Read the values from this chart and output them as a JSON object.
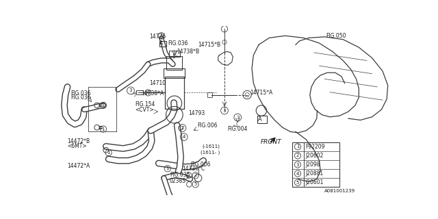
{
  "background_color": "#ffffff",
  "line_color": "#3a3a3a",
  "text_color": "#1a1a1a",
  "fig_width": 6.4,
  "fig_height": 3.2,
  "dpi": 100,
  "doc_number": "A081001239",
  "callout_items": [
    {
      "num": "1",
      "code": "F92209"
    },
    {
      "num": "2",
      "code": "J20602"
    },
    {
      "num": "3",
      "code": "J2098"
    },
    {
      "num": "4",
      "code": "J20881"
    },
    {
      "num": "5",
      "code": "J20601"
    }
  ]
}
